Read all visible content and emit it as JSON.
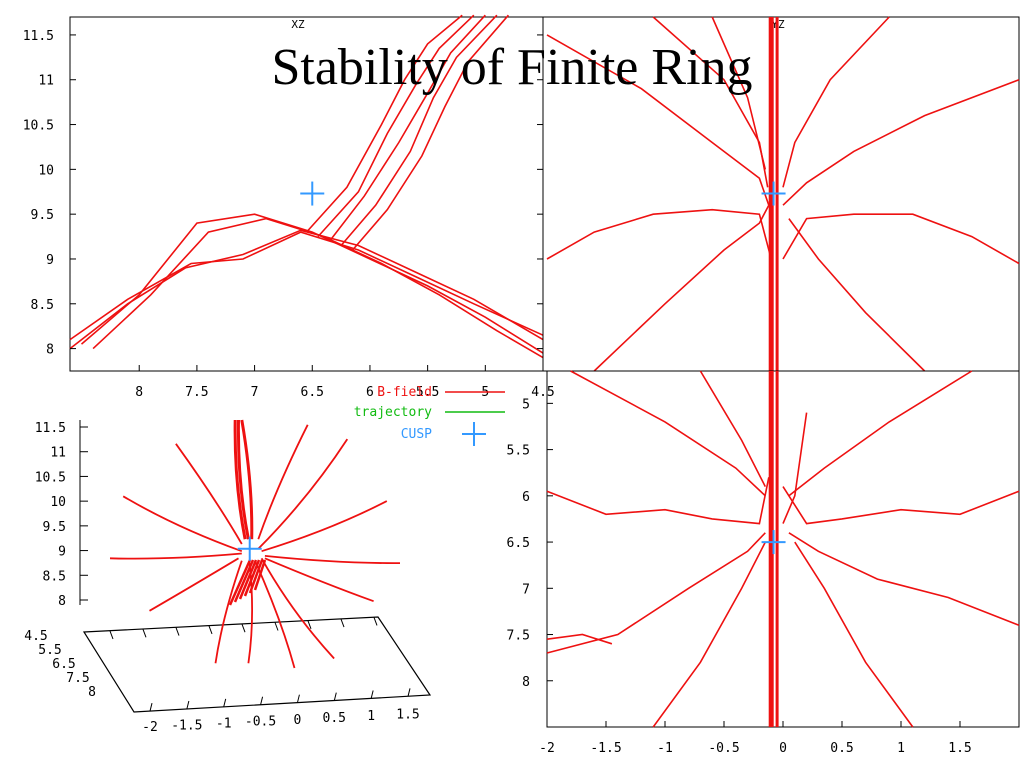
{
  "slide": {
    "title": "Stability of Finite Ring"
  },
  "colors": {
    "bfield": "#ee1111",
    "trajectory": "#11bb11",
    "cusp": "#3399ff",
    "axis": "#000000"
  },
  "chart_data": [
    {
      "type": "line",
      "panel": "XZ projection",
      "title": "XZ",
      "x_reversed": true,
      "xlim": [
        8.6,
        4.5
      ],
      "ylim": [
        7.75,
        11.7
      ],
      "x_ticks": [
        "8",
        "7.5",
        "7",
        "6.5",
        "6",
        "5.5",
        "5",
        "4.5"
      ],
      "y_ticks": [
        "8",
        "8.5",
        "9",
        "9.5",
        "10",
        "10.5",
        "11",
        "11.5"
      ],
      "cusp": [
        6.5,
        9.73
      ],
      "series": [
        {
          "x": [
            8.6,
            8.1,
            7.55,
            7.1,
            6.6,
            6.1,
            5.6,
            5.1,
            4.5
          ],
          "y": [
            8.1,
            8.55,
            8.95,
            9.0,
            9.3,
            9.1,
            8.8,
            8.5,
            8.15
          ]
        },
        {
          "x": [
            8.6,
            8.1,
            7.6,
            7.1,
            6.6,
            6.1,
            5.6,
            5.1,
            4.5
          ],
          "y": [
            8.0,
            8.5,
            8.9,
            9.05,
            9.32,
            9.15,
            8.85,
            8.55,
            8.1
          ]
        },
        {
          "x": [
            8.5,
            8.0,
            7.5,
            7.0,
            6.5,
            6.0,
            5.5,
            5.0,
            4.5
          ],
          "y": [
            8.05,
            8.6,
            9.4,
            9.5,
            9.3,
            9.0,
            8.7,
            8.35,
            7.95
          ]
        },
        {
          "x": [
            8.4,
            7.9,
            7.4,
            6.9,
            6.4,
            5.9,
            5.4,
            4.9,
            4.5
          ],
          "y": [
            8.0,
            8.6,
            9.3,
            9.45,
            9.25,
            8.95,
            8.6,
            8.2,
            7.9
          ]
        },
        {
          "x": [
            6.55,
            6.2,
            5.9,
            5.7,
            5.5,
            5.2
          ],
          "y": [
            9.3,
            9.8,
            10.5,
            11.0,
            11.4,
            11.72
          ]
        },
        {
          "x": [
            6.45,
            6.1,
            5.85,
            5.6,
            5.4,
            5.1
          ],
          "y": [
            9.25,
            9.75,
            10.4,
            10.95,
            11.35,
            11.72
          ]
        },
        {
          "x": [
            6.35,
            6.05,
            5.75,
            5.5,
            5.3,
            5.0
          ],
          "y": [
            9.2,
            9.7,
            10.3,
            10.85,
            11.3,
            11.72
          ]
        },
        {
          "x": [
            6.25,
            5.95,
            5.65,
            5.45,
            5.25,
            4.9
          ],
          "y": [
            9.15,
            9.6,
            10.2,
            10.8,
            11.25,
            11.72
          ]
        },
        {
          "x": [
            6.15,
            5.85,
            5.55,
            5.35,
            5.15,
            4.8
          ],
          "y": [
            9.1,
            9.55,
            10.15,
            10.7,
            11.2,
            11.72
          ]
        }
      ]
    },
    {
      "type": "line",
      "panel": "YZ projection",
      "title": "YZ",
      "xlim": [
        -2.0,
        2.0
      ],
      "ylim": [
        7.75,
        11.7
      ],
      "cusp": [
        -0.08,
        9.73
      ],
      "series": [
        {
          "x": [
            -0.1,
            -0.1
          ],
          "y": [
            7.75,
            11.7
          ],
          "w": 5
        },
        {
          "x": [
            -0.05,
            -0.05
          ],
          "y": [
            7.75,
            11.7
          ],
          "w": 3
        },
        {
          "x": [
            -2.0,
            -1.6,
            -1.1,
            -0.6,
            -0.2,
            -0.1
          ],
          "y": [
            9.0,
            9.3,
            9.5,
            9.55,
            9.5,
            9.0
          ]
        },
        {
          "x": [
            2.0,
            1.6,
            1.1,
            0.6,
            0.2,
            0.0
          ],
          "y": [
            8.95,
            9.25,
            9.5,
            9.5,
            9.45,
            9.0
          ]
        },
        {
          "x": [
            -2.0,
            -1.2,
            -0.6,
            -0.2,
            -0.12
          ],
          "y": [
            11.5,
            10.9,
            10.3,
            9.9,
            9.6
          ]
        },
        {
          "x": [
            2.0,
            1.2,
            0.6,
            0.2,
            0.0
          ],
          "y": [
            11.0,
            10.6,
            10.2,
            9.85,
            9.6
          ]
        },
        {
          "x": [
            -1.6,
            -1.0,
            -0.5,
            -0.2,
            -0.12
          ],
          "y": [
            7.75,
            8.5,
            9.1,
            9.4,
            9.6
          ]
        },
        {
          "x": [
            1.2,
            0.7,
            0.3,
            0.05
          ],
          "y": [
            7.75,
            8.4,
            9.0,
            9.45
          ]
        },
        {
          "x": [
            -1.1,
            -0.5,
            -0.2,
            -0.13
          ],
          "y": [
            11.7,
            11.0,
            10.3,
            9.8
          ]
        },
        {
          "x": [
            0.9,
            0.4,
            0.1,
            0.0
          ],
          "y": [
            11.7,
            11.0,
            10.3,
            9.8
          ]
        },
        {
          "x": [
            -0.6,
            -0.3,
            -0.15
          ],
          "y": [
            11.7,
            10.8,
            10.0
          ]
        }
      ]
    },
    {
      "type": "line",
      "panel": "XY projection",
      "xlim": [
        -2.0,
        2.0
      ],
      "ylim": [
        8.5,
        4.65
      ],
      "x_ticks": [
        "-2",
        "-1.5",
        "-1",
        "-0.5",
        "0",
        "0.5",
        "1",
        "1.5"
      ],
      "y_ticks": [
        "5",
        "5.5",
        "6",
        "6.5",
        "7",
        "7.5",
        "8"
      ],
      "cusp": [
        -0.08,
        6.5
      ],
      "series": [
        {
          "x": [
            -0.1,
            -0.1
          ],
          "y": [
            4.65,
            8.5
          ],
          "w": 5
        },
        {
          "x": [
            -0.05,
            -0.05
          ],
          "y": [
            4.65,
            8.5
          ],
          "w": 3
        },
        {
          "x": [
            -2.0,
            -1.5,
            -1.0,
            -0.6,
            -0.2,
            -0.12
          ],
          "y": [
            5.95,
            6.2,
            6.15,
            6.25,
            6.3,
            5.8
          ]
        },
        {
          "x": [
            2.0,
            1.5,
            1.0,
            0.5,
            0.2,
            0.0
          ],
          "y": [
            5.95,
            6.2,
            6.15,
            6.25,
            6.3,
            5.9
          ]
        },
        {
          "x": [
            -2.0,
            -1.4,
            -0.8,
            -0.3,
            -0.15
          ],
          "y": [
            7.7,
            7.5,
            7.0,
            6.6,
            6.4
          ]
        },
        {
          "x": [
            2.0,
            1.4,
            0.8,
            0.3,
            0.05
          ],
          "y": [
            7.4,
            7.1,
            6.9,
            6.6,
            6.4
          ]
        },
        {
          "x": [
            -1.1,
            -0.7,
            -0.35,
            -0.15
          ],
          "y": [
            8.5,
            7.8,
            7.0,
            6.5
          ]
        },
        {
          "x": [
            1.1,
            0.7,
            0.35,
            0.1
          ],
          "y": [
            8.5,
            7.8,
            7.0,
            6.5
          ]
        },
        {
          "x": [
            -1.8,
            -1.0,
            -0.4,
            -0.15
          ],
          "y": [
            4.65,
            5.2,
            5.7,
            6.0
          ]
        },
        {
          "x": [
            1.6,
            0.9,
            0.35,
            0.05
          ],
          "y": [
            4.65,
            5.2,
            5.7,
            6.0
          ]
        },
        {
          "x": [
            -0.7,
            -0.35,
            -0.15
          ],
          "y": [
            4.65,
            5.4,
            5.9
          ]
        },
        {
          "x": [
            0.2,
            0.1,
            0.0
          ],
          "y": [
            5.1,
            6.0,
            6.3
          ]
        },
        {
          "x": [
            -2.0,
            -1.7,
            -1.45
          ],
          "y": [
            7.55,
            7.5,
            7.6
          ]
        }
      ]
    },
    {
      "type": "line",
      "panel": "3D view",
      "legend": [
        {
          "label": "B-field",
          "color": "#ee1111",
          "style": "line"
        },
        {
          "label": "trajectory",
          "color": "#11bb11",
          "style": "line"
        },
        {
          "label": "CUSP",
          "color": "#3399ff",
          "style": "plus"
        }
      ],
      "z_ticks": [
        "11.5",
        "11",
        "10.5",
        "10",
        "9.5",
        "9",
        "8.5",
        "8"
      ],
      "x_ticks": [
        "-2",
        "-1.5",
        "-1",
        "-0.5",
        "0",
        "0.5",
        "1",
        "1.5"
      ],
      "y_ticks": [
        "4.5",
        "5.5",
        "6.5",
        "7.5",
        "8"
      ],
      "rays": [
        [
          [
            -0.3,
            11.7
          ],
          [
            -0.15,
            9.2
          ]
        ],
        [
          [
            -0.2,
            11.7
          ],
          [
            -0.05,
            9.2
          ]
        ],
        [
          [
            -0.25,
            11.7
          ],
          [
            -0.1,
            9.2
          ]
        ],
        [
          [
            -1.2,
            11.2
          ],
          [
            -0.2,
            9.1
          ]
        ],
        [
          [
            0.8,
            11.6
          ],
          [
            0.05,
            9.2
          ]
        ],
        [
          [
            1.4,
            11.3
          ],
          [
            0.05,
            9.0
          ]
        ],
        [
          [
            -2.0,
            10.1
          ],
          [
            -0.2,
            8.95
          ]
        ],
        [
          [
            2.0,
            10.0
          ],
          [
            0.1,
            8.95
          ]
        ],
        [
          [
            -2.2,
            8.8
          ],
          [
            -0.2,
            8.9
          ]
        ],
        [
          [
            2.2,
            8.7
          ],
          [
            0.15,
            8.85
          ]
        ],
        [
          [
            -1.6,
            7.7
          ],
          [
            -0.25,
            8.8
          ]
        ],
        [
          [
            1.8,
            7.9
          ],
          [
            0.15,
            8.8
          ]
        ],
        [
          [
            -0.6,
            6.6
          ],
          [
            -0.2,
            8.75
          ]
        ],
        [
          [
            0.6,
            6.5
          ],
          [
            0.0,
            8.75
          ]
        ],
        [
          [
            1.2,
            6.7
          ],
          [
            0.1,
            8.8
          ]
        ],
        [
          [
            -0.1,
            6.6
          ],
          [
            -0.08,
            8.7
          ]
        ]
      ],
      "cusp": [
        -0.08,
        9.0
      ]
    }
  ]
}
